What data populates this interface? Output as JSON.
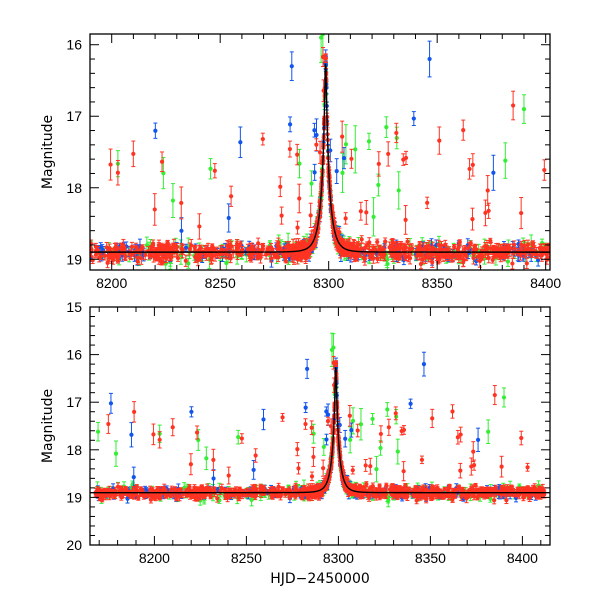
{
  "chart_data": [
    {
      "type": "scatter",
      "panel": "top",
      "title": "",
      "xlabel": "",
      "ylabel": "Magnitude",
      "xlim": [
        8190,
        8402
      ],
      "ylim": [
        19.15,
        15.85
      ],
      "y_inverted": true,
      "xticks": [
        8200,
        8250,
        8300,
        8350,
        8400
      ],
      "yticks": [
        16,
        17,
        18,
        19
      ],
      "series_colors": {
        "green": "#33ee33",
        "blue": "#1155ee",
        "red": "#ff3322"
      },
      "model": {
        "peak_x": 8298.6,
        "peak_mag": 16.15,
        "base_mag": 18.9,
        "tau": 4.0
      }
    },
    {
      "type": "scatter",
      "panel": "bottom",
      "title": "",
      "xlabel": "HJD−2450000",
      "ylabel": "Magnitude",
      "xlim": [
        8165,
        8415
      ],
      "ylim": [
        20,
        15
      ],
      "y_inverted": true,
      "xticks": [
        8200,
        8250,
        8300,
        8350,
        8400
      ],
      "yticks": [
        15,
        16,
        17,
        18,
        19,
        20
      ],
      "series_colors": {
        "green": "#33ee33",
        "blue": "#1155ee",
        "red": "#ff3322"
      },
      "model": {
        "peak_x": 8298.6,
        "peak_mag": 16.15,
        "base_mag": 18.9,
        "tau": 4.0
      }
    }
  ]
}
